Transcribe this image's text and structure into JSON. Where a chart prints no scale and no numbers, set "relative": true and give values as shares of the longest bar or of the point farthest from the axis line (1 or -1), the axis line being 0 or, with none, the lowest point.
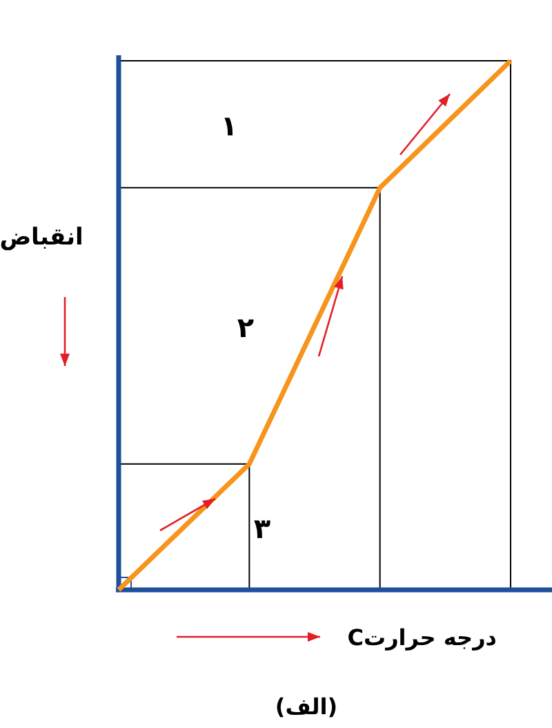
{
  "chart_data": {
    "type": "line",
    "relative": true,
    "xlabel": "درجه حرارتC",
    "ylabel": "انقباض",
    "categories": [
      null,
      null,
      null,
      null
    ],
    "series": [
      {
        "color": "#f7941d",
        "values": [
          0,
          0.238,
          0.76,
          1
        ]
      }
    ],
    "ref_lines": [
      {
        "axis": "y",
        "value": 0.238,
        "color": "#000000"
      },
      {
        "axis": "y",
        "value": 0.76,
        "color": "#000000"
      },
      {
        "axis": "y",
        "value": 1,
        "color": "#000000"
      }
    ],
    "annotations": [
      "۱",
      "۲",
      "۳",
      "(الف)"
    ]
  }
}
